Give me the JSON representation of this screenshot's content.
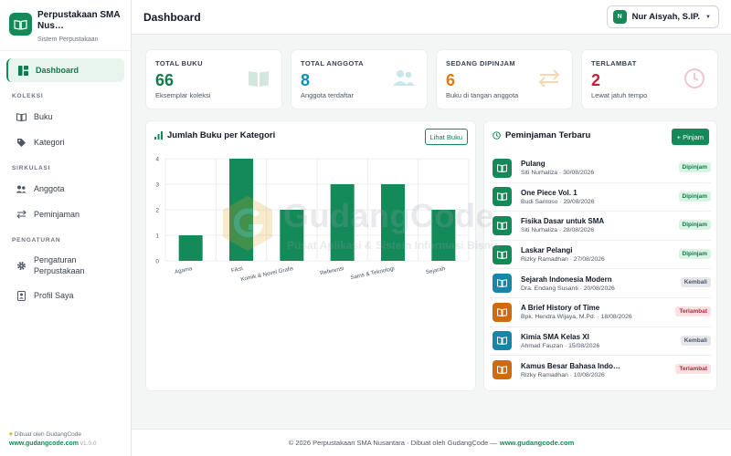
{
  "brand": {
    "title": "Perpustakaan SMA Nus…",
    "subtitle": "Sistem Perpustakaan"
  },
  "sidebar": {
    "dashboard": "Dashboard",
    "sections": {
      "koleksi": "KOLEKSI",
      "sirkulasi": "SIRKULASI",
      "pengaturan": "PENGATURAN"
    },
    "items": {
      "buku": "Buku",
      "kategori": "Kategori",
      "anggota": "Anggota",
      "peminjaman": "Peminjaman",
      "pengaturan_1": "Pengaturan",
      "pengaturan_2": "Perpustakaan",
      "profil": "Profil Saya"
    },
    "footer": {
      "made_by": "Dibuat oleh GudangCode",
      "link": "www.gudangcode.com",
      "version": "v1.0.0"
    }
  },
  "header": {
    "title": "Dashboard",
    "user_initial": "N",
    "user_name": "Nur Aisyah, S.IP."
  },
  "stats": [
    {
      "label": "TOTAL BUKU",
      "value": "66",
      "sub": "Eksemplar koleksi",
      "color": "#0f7a4c",
      "icon": "book-icon"
    },
    {
      "label": "TOTAL ANGGOTA",
      "value": "8",
      "sub": "Anggota terdaftar",
      "color": "#0e8fb0",
      "icon": "users-icon"
    },
    {
      "label": "SEDANG DIPINJAM",
      "value": "6",
      "sub": "Buku di tangan anggota",
      "color": "#e07b0c",
      "icon": "swap-icon"
    },
    {
      "label": "TERLAMBAT",
      "value": "2",
      "sub": "Lewat jatuh tempo",
      "color": "#c81e3a",
      "icon": "clock-icon"
    }
  ],
  "chart_panel": {
    "title": "Jumlah Buku per Kategori",
    "button": "Lihat Buku"
  },
  "chart_data": {
    "type": "bar",
    "categories": [
      "Agama",
      "Fiksi",
      "Komik & Novel Grafis",
      "Referensi",
      "Sains & Teknologi",
      "Sejarah"
    ],
    "values": [
      1,
      4,
      2,
      3,
      3,
      2
    ],
    "ylim": [
      0,
      4
    ],
    "yticks": [
      "0",
      "1",
      "2",
      "3",
      "4"
    ],
    "grid": true,
    "color": "#148a59"
  },
  "loans_panel": {
    "title": "Peminjaman Terbaru",
    "button": "+ Pinjam"
  },
  "loans": [
    {
      "title": "Pulang",
      "meta": "Siti Nurhaliza · 30/08/2026",
      "status": "Dipinjam",
      "icon_color": "#148a59",
      "badge_bg": "#d9f4e5",
      "badge_fg": "#0f7a4c"
    },
    {
      "title": "One Piece Vol. 1",
      "meta": "Budi Santoso · 29/08/2026",
      "status": "Dipinjam",
      "icon_color": "#148a59",
      "badge_bg": "#d9f4e5",
      "badge_fg": "#0f7a4c"
    },
    {
      "title": "Fisika Dasar untuk SMA",
      "meta": "Siti Nurhaliza · 28/08/2026",
      "status": "Dipinjam",
      "icon_color": "#148a59",
      "badge_bg": "#d9f4e5",
      "badge_fg": "#0f7a4c"
    },
    {
      "title": "Laskar Pelangi",
      "meta": "Rizky Ramadhan · 27/08/2026",
      "status": "Dipinjam",
      "icon_color": "#148a59",
      "badge_bg": "#d9f4e5",
      "badge_fg": "#0f7a4c"
    },
    {
      "title": "Sejarah Indonesia Modern",
      "meta": "Dra. Endang Susanti · 20/08/2026",
      "status": "Kembali",
      "icon_color": "#1487a8",
      "badge_bg": "#e5e7eb",
      "badge_fg": "#4b5563"
    },
    {
      "title": "A Brief History of Time",
      "meta": "Bpk. Hendra Wijaya, M.Pd. · 18/08/2026",
      "status": "Terlambat",
      "icon_color": "#d16a0b",
      "badge_bg": "#fde0e3",
      "badge_fg": "#c81e3a"
    },
    {
      "title": "Kimia SMA Kelas XI",
      "meta": "Ahmad Fauzan · 15/08/2026",
      "status": "Kembali",
      "icon_color": "#1487a8",
      "badge_bg": "#e5e7eb",
      "badge_fg": "#4b5563"
    },
    {
      "title": "Kamus Besar Bahasa Indo…",
      "meta": "Rizky Ramadhan · 10/08/2026",
      "status": "Terlambat",
      "icon_color": "#d16a0b",
      "badge_bg": "#fde0e3",
      "badge_fg": "#c81e3a"
    }
  ],
  "footer": {
    "text": "© 2026 Perpustakaan SMA Nusantara · Dibuat oleh GudangCode —",
    "link": "www.gudangcode.com"
  },
  "watermark": {
    "main": "GudangCode",
    "sub": "Pusat Aplikasi & Sistem Informasi Bisnis"
  }
}
